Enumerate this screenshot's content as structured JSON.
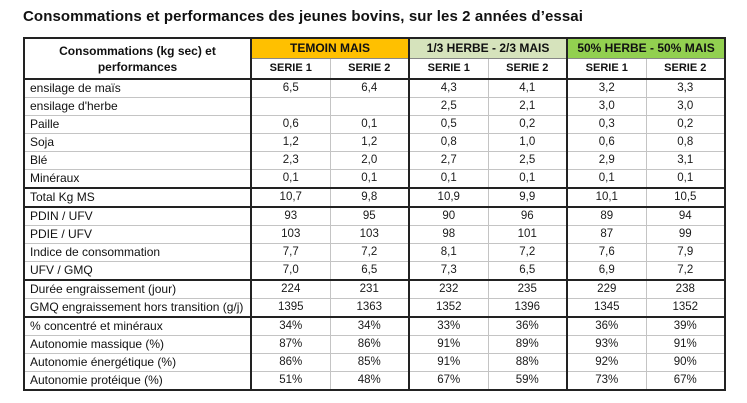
{
  "title": "Consommations et performances des jeunes bovins, sur les 2 années d’essai",
  "table": {
    "corner": [
      "Consommations (kg sec) et",
      "performances"
    ],
    "groups": [
      {
        "label": "TEMOIN MAIS",
        "color": "#FFC000"
      },
      {
        "label": "1/3 HERBE - 2/3 MAIS",
        "color": "#D6E3BC"
      },
      {
        "label": "50% HERBE - 50% MAIS",
        "color": "#92D050"
      }
    ],
    "series": [
      "SERIE 1",
      "SERIE 2",
      "SERIE 1",
      "SERIE 2",
      "SERIE 1",
      "SERIE 2"
    ],
    "sections": [
      {
        "name": "consommations",
        "rows": [
          {
            "label": "ensilage de maïs",
            "values": [
              "6,5",
              "6,4",
              "4,3",
              "4,1",
              "3,2",
              "3,3"
            ]
          },
          {
            "label": "ensilage d'herbe",
            "values": [
              "",
              "",
              "2,5",
              "2,1",
              "3,0",
              "3,0"
            ]
          },
          {
            "label": "Paille",
            "values": [
              "0,6",
              "0,1",
              "0,5",
              "0,2",
              "0,3",
              "0,2"
            ]
          },
          {
            "label": "Soja",
            "values": [
              "1,2",
              "1,2",
              "0,8",
              "1,0",
              "0,6",
              "0,8"
            ]
          },
          {
            "label": "Blé",
            "values": [
              "2,3",
              "2,0",
              "2,7",
              "2,5",
              "2,9",
              "3,1"
            ]
          },
          {
            "label": "Minéraux",
            "values": [
              "0,1",
              "0,1",
              "0,1",
              "0,1",
              "0,1",
              "0,1"
            ]
          }
        ]
      },
      {
        "name": "total",
        "rows": [
          {
            "label": "Total Kg MS",
            "values": [
              "10,7",
              "9,8",
              "10,9",
              "9,9",
              "10,1",
              "10,5"
            ]
          }
        ]
      },
      {
        "name": "ratios",
        "rows": [
          {
            "label": "PDIN / UFV",
            "values": [
              "93",
              "95",
              "90",
              "96",
              "89",
              "94"
            ]
          },
          {
            "label": "PDIE / UFV",
            "values": [
              "103",
              "103",
              "98",
              "101",
              "87",
              "99"
            ]
          },
          {
            "label": "Indice de consommation",
            "values": [
              "7,7",
              "7,2",
              "8,1",
              "7,2",
              "7,6",
              "7,9"
            ]
          },
          {
            "label": "UFV / GMQ",
            "values": [
              "7,0",
              "6,5",
              "7,3",
              "6,5",
              "6,9",
              "7,2"
            ]
          }
        ]
      },
      {
        "name": "engraissement",
        "rows": [
          {
            "label": "Durée engraissement (jour)",
            "values": [
              "224",
              "231",
              "232",
              "235",
              "229",
              "238"
            ]
          },
          {
            "label": "GMQ engraissement hors transition (g/j)",
            "values": [
              "1395",
              "1363",
              "1352",
              "1396",
              "1345",
              "1352"
            ]
          }
        ]
      },
      {
        "name": "autonomie",
        "rows": [
          {
            "label": "% concentré et minéraux",
            "values": [
              "34%",
              "34%",
              "33%",
              "36%",
              "36%",
              "39%"
            ]
          },
          {
            "label": "Autonomie massique (%)",
            "values": [
              "87%",
              "86%",
              "91%",
              "89%",
              "93%",
              "91%"
            ]
          },
          {
            "label": "Autonomie énergétique (%)",
            "values": [
              "86%",
              "85%",
              "91%",
              "88%",
              "92%",
              "90%"
            ]
          },
          {
            "label": "Autonomie protéique (%)",
            "values": [
              "51%",
              "48%",
              "67%",
              "59%",
              "73%",
              "67%"
            ]
          }
        ]
      }
    ]
  }
}
